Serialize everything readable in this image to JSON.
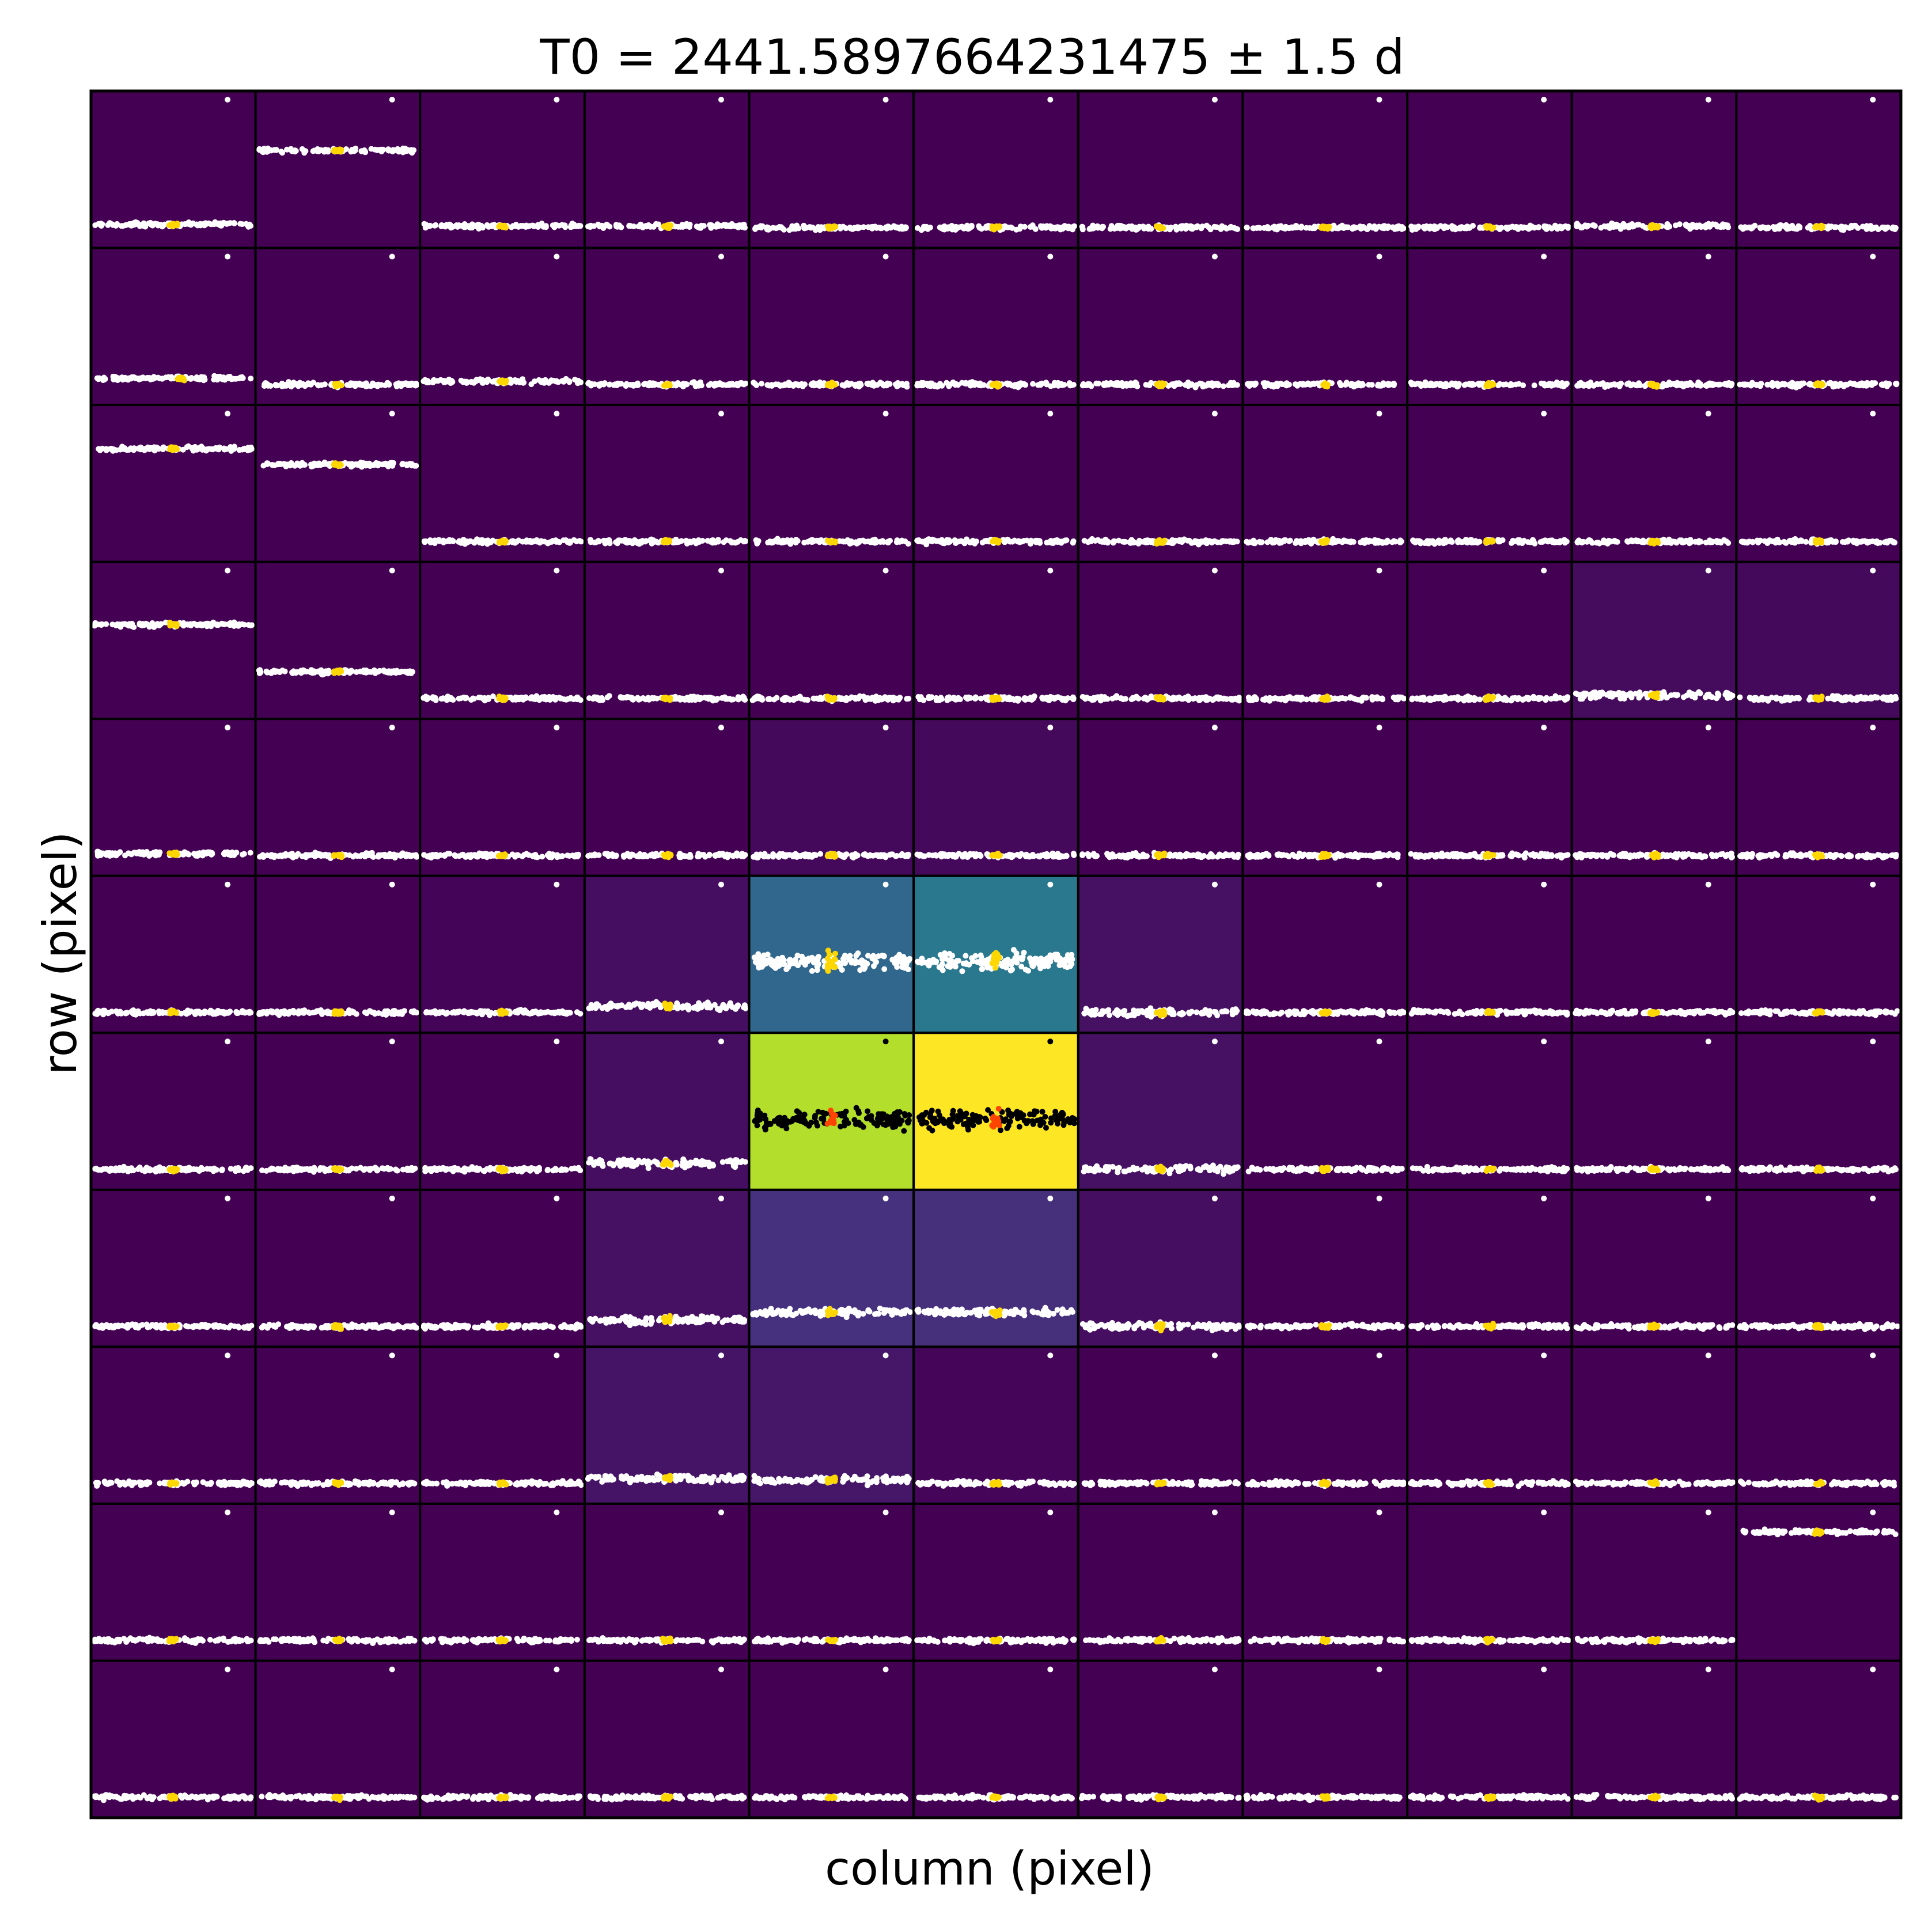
{
  "chart_data": {
    "type": "heatmap",
    "title": "T0 = 2441.5897664231475 ± 1.5 d",
    "xlabel": "column (pixel)",
    "ylabel": "row (pixel)",
    "grid_rows": 11,
    "grid_cols": 11,
    "colormap": "viridis",
    "intensity": [
      [
        0,
        0,
        0,
        0,
        0,
        0,
        0,
        0,
        0,
        0,
        0
      ],
      [
        0,
        0,
        0,
        0,
        0,
        0,
        0,
        0,
        0,
        0,
        0
      ],
      [
        0,
        0,
        0,
        0,
        0,
        0,
        0,
        0,
        0,
        0,
        0
      ],
      [
        0,
        0,
        0,
        0,
        0,
        0,
        0,
        0,
        0,
        0.04,
        0.03
      ],
      [
        0,
        0,
        0,
        0,
        0.03,
        0.03,
        0,
        0,
        0,
        0,
        0
      ],
      [
        0,
        0,
        0.01,
        0.05,
        0.42,
        0.5,
        0.06,
        0,
        0,
        0,
        0
      ],
      [
        0,
        0,
        0,
        0.05,
        0.94,
        1.0,
        0.06,
        0,
        0,
        0,
        0
      ],
      [
        0,
        0,
        0,
        0.06,
        0.18,
        0.17,
        0.05,
        0,
        0,
        0,
        0
      ],
      [
        0,
        0,
        0,
        0.07,
        0.08,
        0.02,
        0,
        0,
        0,
        0,
        0
      ],
      [
        0,
        0,
        0,
        0,
        0,
        0,
        0,
        0,
        0,
        0,
        0
      ],
      [
        0,
        0,
        0,
        0,
        0,
        0,
        0,
        0,
        0,
        0,
        0
      ]
    ],
    "lightcurve_level": [
      [
        0.15,
        0.62,
        0.14,
        0.14,
        0.13,
        0.13,
        0.13,
        0.13,
        0.13,
        0.14,
        0.13
      ],
      [
        0.17,
        0.13,
        0.15,
        0.13,
        0.13,
        0.13,
        0.13,
        0.13,
        0.13,
        0.13,
        0.13
      ],
      [
        0.72,
        0.62,
        0.13,
        0.13,
        0.13,
        0.13,
        0.13,
        0.13,
        0.13,
        0.13,
        0.13
      ],
      [
        0.6,
        0.3,
        0.13,
        0.13,
        0.13,
        0.13,
        0.13,
        0.13,
        0.13,
        0.15,
        0.13
      ],
      [
        0.14,
        0.13,
        0.13,
        0.13,
        0.13,
        0.13,
        0.13,
        0.13,
        0.13,
        0.13,
        0.13
      ],
      [
        0.13,
        0.13,
        0.13,
        0.17,
        0.45,
        0.45,
        0.13,
        0.13,
        0.13,
        0.13,
        0.13
      ],
      [
        0.13,
        0.13,
        0.13,
        0.17,
        0.45,
        0.45,
        0.13,
        0.13,
        0.13,
        0.13,
        0.13
      ],
      [
        0.13,
        0.13,
        0.13,
        0.17,
        0.22,
        0.22,
        0.13,
        0.13,
        0.13,
        0.13,
        0.13
      ],
      [
        0.13,
        0.13,
        0.13,
        0.16,
        0.15,
        0.13,
        0.13,
        0.13,
        0.13,
        0.13,
        0.13
      ],
      [
        0.13,
        0.13,
        0.13,
        0.13,
        0.13,
        0.13,
        0.13,
        0.13,
        0.13,
        0.13,
        0.82
      ],
      [
        0.13,
        0.13,
        0.13,
        0.13,
        0.13,
        0.13,
        0.13,
        0.13,
        0.13,
        0.13,
        0.13
      ]
    ],
    "transit_phase": [
      [
        0.5,
        0.5,
        0.5,
        0.5,
        0.5,
        0.5,
        0.5,
        0.5,
        0.5,
        0.5,
        0.5
      ],
      [
        0.55,
        0.5,
        0.5,
        0.5,
        0.5,
        0.5,
        0.5,
        0.5,
        0.5,
        0.5,
        0.5
      ],
      [
        0.5,
        0.5,
        0.5,
        0.5,
        0.5,
        0.5,
        0.5,
        0.5,
        0.5,
        0.5,
        0.5
      ],
      [
        0.5,
        0.5,
        0.5,
        0.5,
        0.5,
        0.5,
        0.5,
        0.5,
        0.5,
        0.5,
        0.5
      ],
      [
        0.5,
        0.5,
        0.5,
        0.5,
        0.5,
        0.5,
        0.5,
        0.5,
        0.5,
        0.5,
        0.5
      ],
      [
        0.5,
        0.5,
        0.5,
        0.5,
        0.5,
        0.5,
        0.5,
        0.5,
        0.5,
        0.5,
        0.5
      ],
      [
        0.5,
        0.5,
        0.5,
        0.5,
        0.5,
        0.5,
        0.5,
        0.5,
        0.5,
        0.5,
        0.5
      ],
      [
        0.5,
        0.5,
        0.5,
        0.5,
        0.5,
        0.5,
        0.5,
        0.5,
        0.5,
        0.5,
        0.5
      ],
      [
        0.5,
        0.5,
        0.5,
        0.5,
        0.5,
        0.5,
        0.5,
        0.5,
        0.5,
        0.5,
        0.5
      ],
      [
        0.5,
        0.5,
        0.5,
        0.5,
        0.5,
        0.5,
        0.5,
        0.5,
        0.5,
        0.5,
        0.5
      ],
      [
        0.5,
        0.5,
        0.5,
        0.5,
        0.5,
        0.5,
        0.5,
        0.5,
        0.5,
        0.5,
        0.5
      ]
    ],
    "colors": {
      "background_low": "#440154",
      "points_on_dark": "#ffffff",
      "points_on_bright": "#000000",
      "transit_on_dark": "#ffd700",
      "transit_on_bright": "#ff4500",
      "grid_lines": "#000000"
    }
  }
}
